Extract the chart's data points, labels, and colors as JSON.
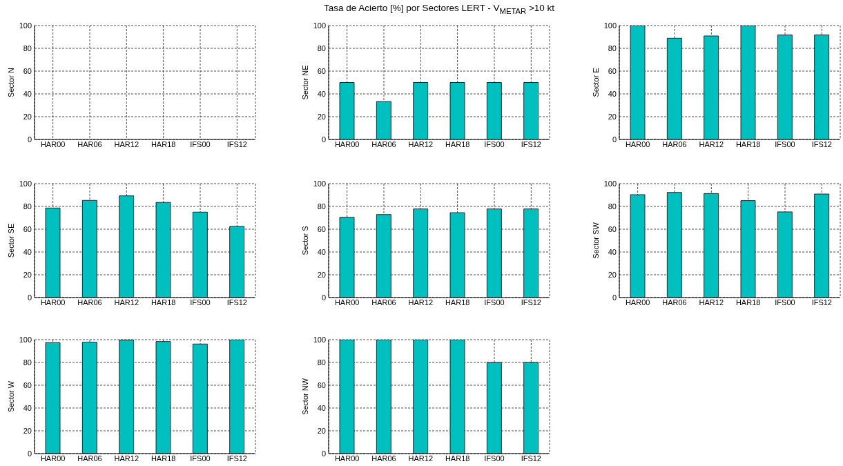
{
  "chart_data": [
    {
      "type": "bar",
      "ylabel": "Sector N",
      "categories": [
        "HAR00",
        "HAR06",
        "HAR12",
        "HAR18",
        "IFS00",
        "IFS12"
      ],
      "values": [
        null,
        null,
        null,
        null,
        null,
        null
      ],
      "color": "#00bfbf",
      "ylim": [
        0,
        100
      ],
      "yticks": [
        0,
        20,
        40,
        60,
        80,
        100
      ],
      "grid": true
    },
    {
      "type": "bar",
      "title": "Tasa de Acierto [%] por Sectores LERT - V$_{METAR}$ >10 kt",
      "ylabel": "Sector NE",
      "categories": [
        "HAR00",
        "HAR06",
        "HAR12",
        "HAR18",
        "IFS00",
        "IFS12"
      ],
      "values": [
        50,
        33.3,
        50,
        50,
        50,
        50
      ],
      "color": "#00bfbf",
      "ylim": [
        0,
        100
      ],
      "yticks": [
        0,
        20,
        40,
        60,
        80,
        100
      ],
      "grid": true
    },
    {
      "type": "bar",
      "ylabel": "Sector E",
      "categories": [
        "HAR00",
        "HAR06",
        "HAR12",
        "HAR18",
        "IFS00",
        "IFS12"
      ],
      "values": [
        100,
        88.9,
        90.9,
        100,
        91.7,
        91.7
      ],
      "color": "#00bfbf",
      "ylim": [
        0,
        100
      ],
      "yticks": [
        0,
        20,
        40,
        60,
        80,
        100
      ],
      "grid": true
    },
    {
      "type": "bar",
      "ylabel": "Sector SE",
      "categories": [
        "HAR00",
        "HAR06",
        "HAR12",
        "HAR18",
        "IFS00",
        "IFS12"
      ],
      "values": [
        78.6,
        85.3,
        89.3,
        83.5,
        75,
        62.5
      ],
      "color": "#00bfbf",
      "ylim": [
        0,
        100
      ],
      "yticks": [
        0,
        20,
        40,
        60,
        80,
        100
      ],
      "grid": true
    },
    {
      "type": "bar",
      "ylabel": "Sector S",
      "categories": [
        "HAR00",
        "HAR06",
        "HAR12",
        "HAR18",
        "IFS00",
        "IFS12"
      ],
      "values": [
        70.5,
        72.9,
        77.8,
        74.5,
        77.8,
        77.8
      ],
      "color": "#00bfbf",
      "ylim": [
        0,
        100
      ],
      "yticks": [
        0,
        20,
        40,
        60,
        80,
        100
      ],
      "grid": true
    },
    {
      "type": "bar",
      "ylabel": "Sector SW",
      "categories": [
        "HAR00",
        "HAR06",
        "HAR12",
        "HAR18",
        "IFS00",
        "IFS12"
      ],
      "values": [
        90.3,
        92.3,
        91.3,
        85.1,
        75.2,
        90.9
      ],
      "color": "#00bfbf",
      "ylim": [
        0,
        100
      ],
      "yticks": [
        0,
        20,
        40,
        60,
        80,
        100
      ],
      "grid": true
    },
    {
      "type": "bar",
      "ylabel": "Sector W",
      "categories": [
        "HAR00",
        "HAR06",
        "HAR12",
        "HAR18",
        "IFS00",
        "IFS12"
      ],
      "values": [
        97.4,
        97.8,
        99.7,
        98.4,
        96.2,
        100
      ],
      "color": "#00bfbf",
      "ylim": [
        0,
        100
      ],
      "yticks": [
        0,
        20,
        40,
        60,
        80,
        100
      ],
      "grid": true
    },
    {
      "type": "bar",
      "ylabel": "Sector NW",
      "categories": [
        "HAR00",
        "HAR06",
        "HAR12",
        "HAR18",
        "IFS00",
        "IFS12"
      ],
      "values": [
        100,
        100,
        100,
        100,
        80,
        80
      ],
      "color": "#00bfbf",
      "ylim": [
        0,
        100
      ],
      "yticks": [
        0,
        20,
        40,
        60,
        80,
        100
      ],
      "grid": true
    }
  ]
}
